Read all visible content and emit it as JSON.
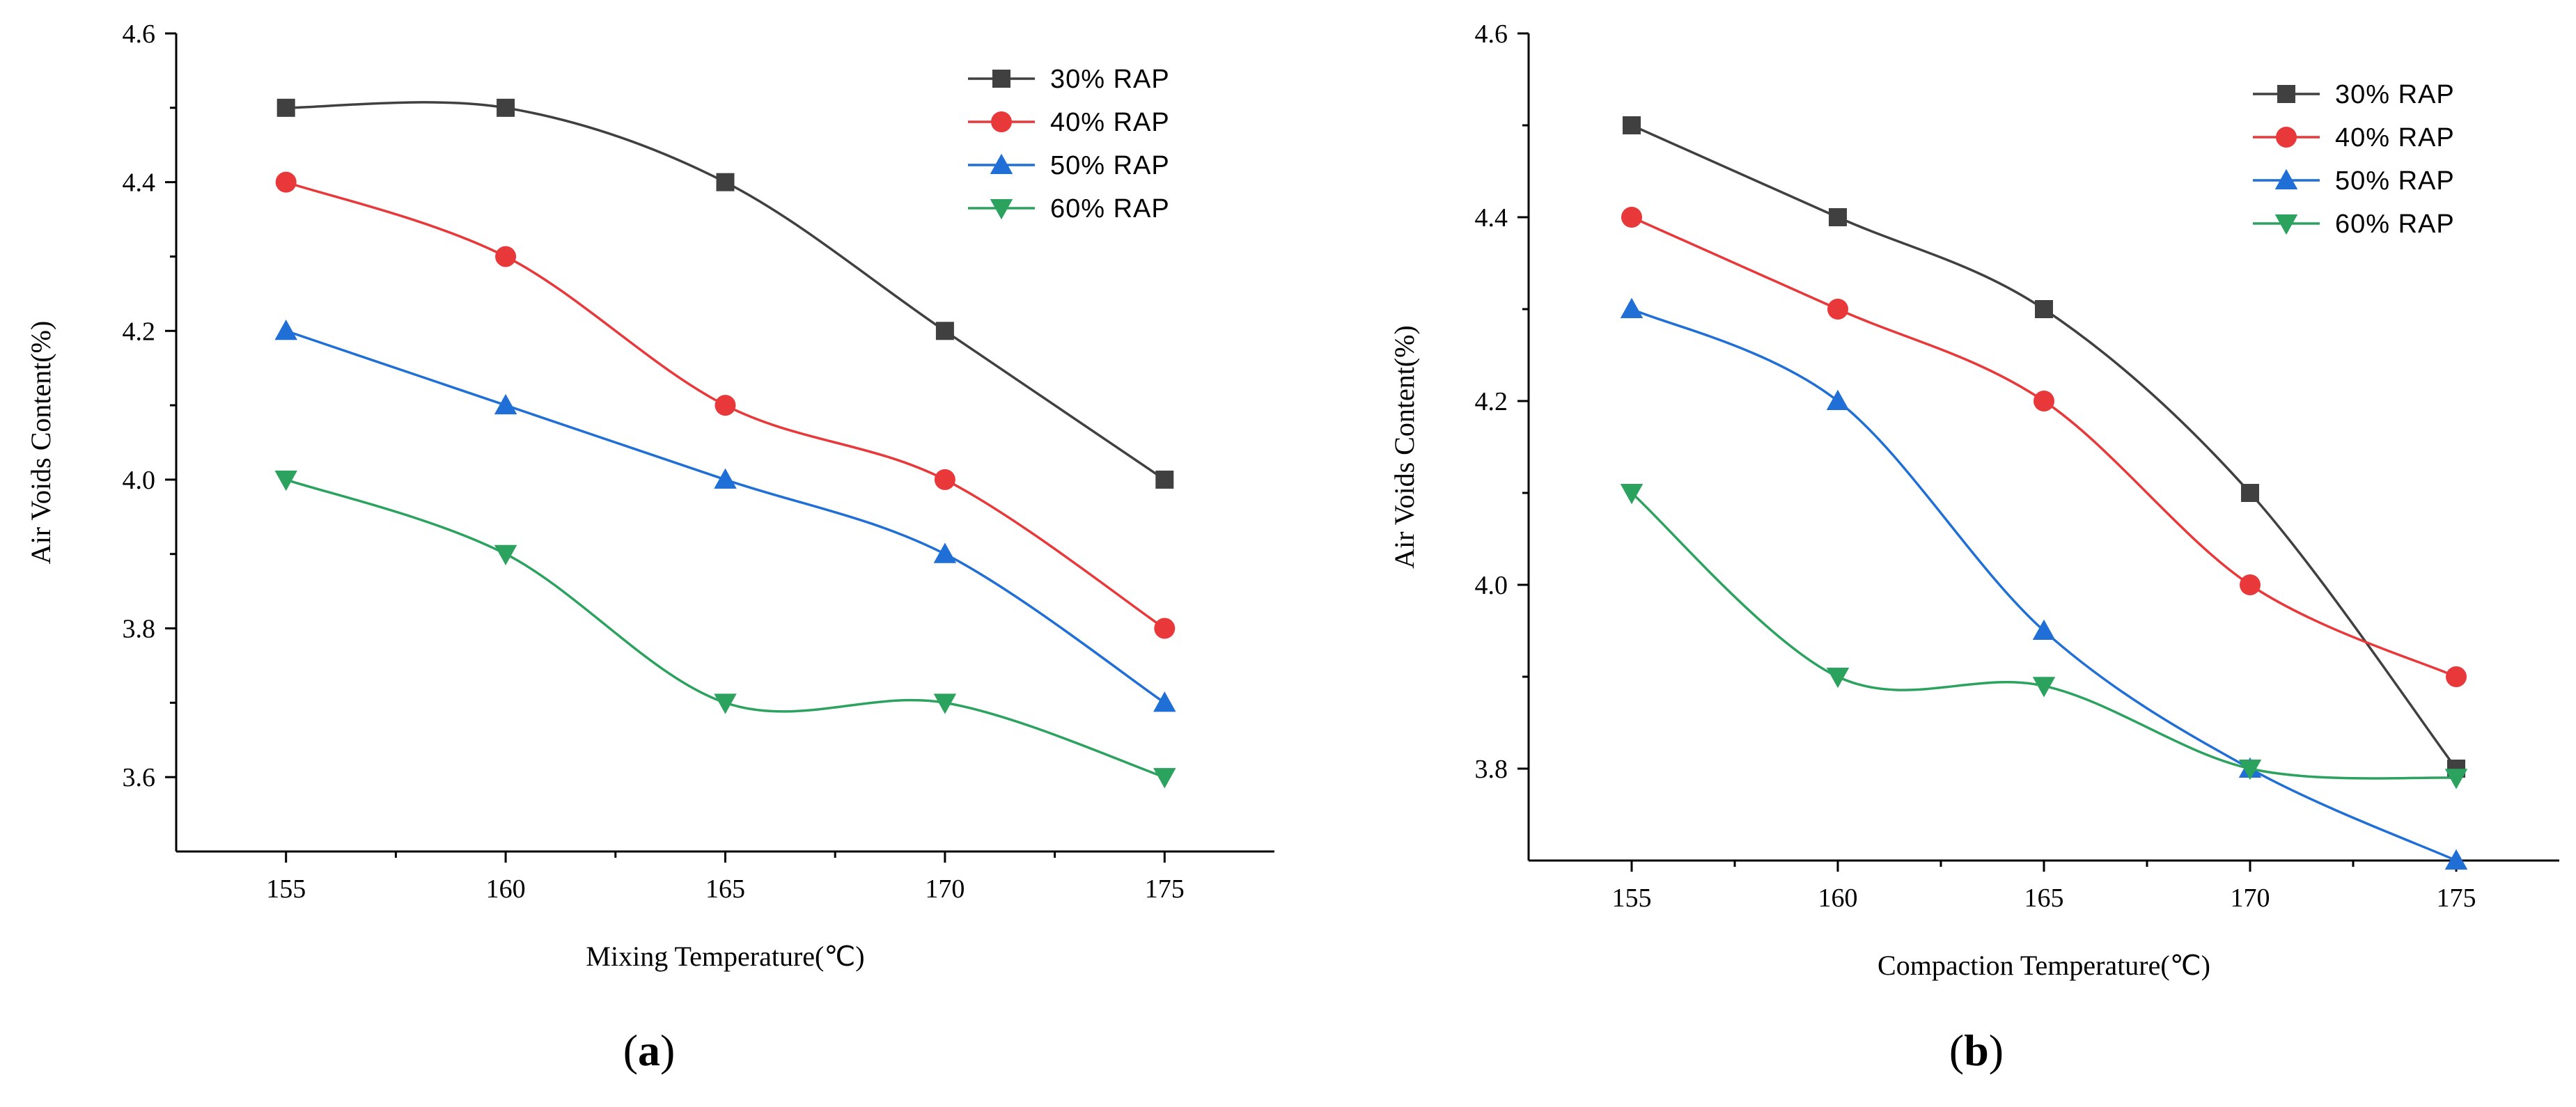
{
  "chart_data": [
    {
      "type": "line",
      "panel_label": "a",
      "title": "",
      "xlabel": "Mixing Temperature(℃)",
      "ylabel": "Air Voids Content(%)",
      "x": [
        155,
        160,
        165,
        170,
        175
      ],
      "xlim": [
        152.5,
        177.5
      ],
      "ylim": [
        3.5,
        4.6
      ],
      "xticks": [
        "155",
        "160",
        "165",
        "170",
        "175"
      ],
      "yticks": [
        "3.6",
        "3.8",
        "4.0",
        "4.2",
        "4.4",
        "4.6"
      ],
      "legend_position": "top-right",
      "series": [
        {
          "name": "30% RAP",
          "marker": "square",
          "color": "#404040",
          "values": [
            4.5,
            4.5,
            4.4,
            4.2,
            4.0
          ]
        },
        {
          "name": "40% RAP",
          "marker": "circle",
          "color": "#e8383a",
          "values": [
            4.4,
            4.3,
            4.1,
            4.0,
            3.8
          ]
        },
        {
          "name": "50% RAP",
          "marker": "triangle-up",
          "color": "#1f6fd6",
          "values": [
            4.2,
            4.1,
            4.0,
            3.9,
            3.7
          ]
        },
        {
          "name": "60% RAP",
          "marker": "triangle-down",
          "color": "#2ca25f",
          "values": [
            4.0,
            3.9,
            3.7,
            3.7,
            3.6
          ]
        }
      ]
    },
    {
      "type": "line",
      "panel_label": "b",
      "title": "",
      "xlabel": "Compaction Temperature(℃)",
      "ylabel": "Air Voids Content(%)",
      "x": [
        155,
        160,
        165,
        170,
        175
      ],
      "xlim": [
        152.5,
        177.5
      ],
      "ylim": [
        3.7,
        4.6
      ],
      "xticks": [
        "155",
        "160",
        "165",
        "170",
        "175"
      ],
      "yticks": [
        "3.8",
        "4.0",
        "4.2",
        "4.4",
        "4.6"
      ],
      "legend_position": "top-right",
      "series": [
        {
          "name": "30% RAP",
          "marker": "square",
          "color": "#404040",
          "values": [
            4.5,
            4.4,
            4.3,
            4.1,
            3.8
          ]
        },
        {
          "name": "40% RAP",
          "marker": "circle",
          "color": "#e8383a",
          "values": [
            4.4,
            4.3,
            4.2,
            4.0,
            3.9
          ]
        },
        {
          "name": "50% RAP",
          "marker": "triangle-up",
          "color": "#1f6fd6",
          "values": [
            4.3,
            4.2,
            3.95,
            3.8,
            3.7
          ]
        },
        {
          "name": "60% RAP",
          "marker": "triangle-down",
          "color": "#2ca25f",
          "values": [
            4.1,
            3.9,
            3.89,
            3.8,
            3.79
          ]
        }
      ]
    }
  ]
}
